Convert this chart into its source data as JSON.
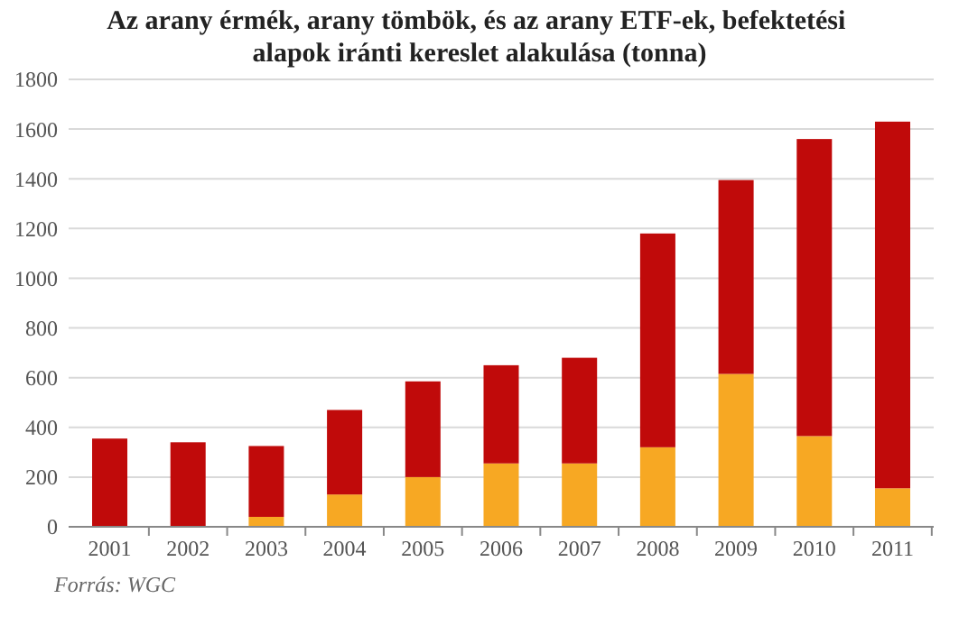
{
  "chart_data": {
    "type": "bar",
    "stacked": true,
    "title": "Az arany érmék, arany tömbök, és az arany ETF-ek, befektetési alapok iránti kereslet alakulása (tonna)",
    "categories": [
      "2001",
      "2002",
      "2003",
      "2004",
      "2005",
      "2006",
      "2007",
      "2008",
      "2009",
      "2010",
      "2011"
    ],
    "series": [
      {
        "color": "#f7a823",
        "values": [
          0,
          0,
          40,
          130,
          200,
          255,
          255,
          320,
          615,
          365,
          155
        ]
      },
      {
        "color": "#c00a0a",
        "values": [
          355,
          340,
          285,
          340,
          385,
          395,
          425,
          860,
          780,
          1195,
          1475
        ]
      }
    ],
    "ylim": [
      0,
      1800
    ],
    "yticks": [
      0,
      200,
      400,
      600,
      800,
      1000,
      1200,
      1400,
      1600,
      1800
    ],
    "grid": "y",
    "legend": false,
    "annotations": [
      "Forrás: WGC"
    ]
  }
}
